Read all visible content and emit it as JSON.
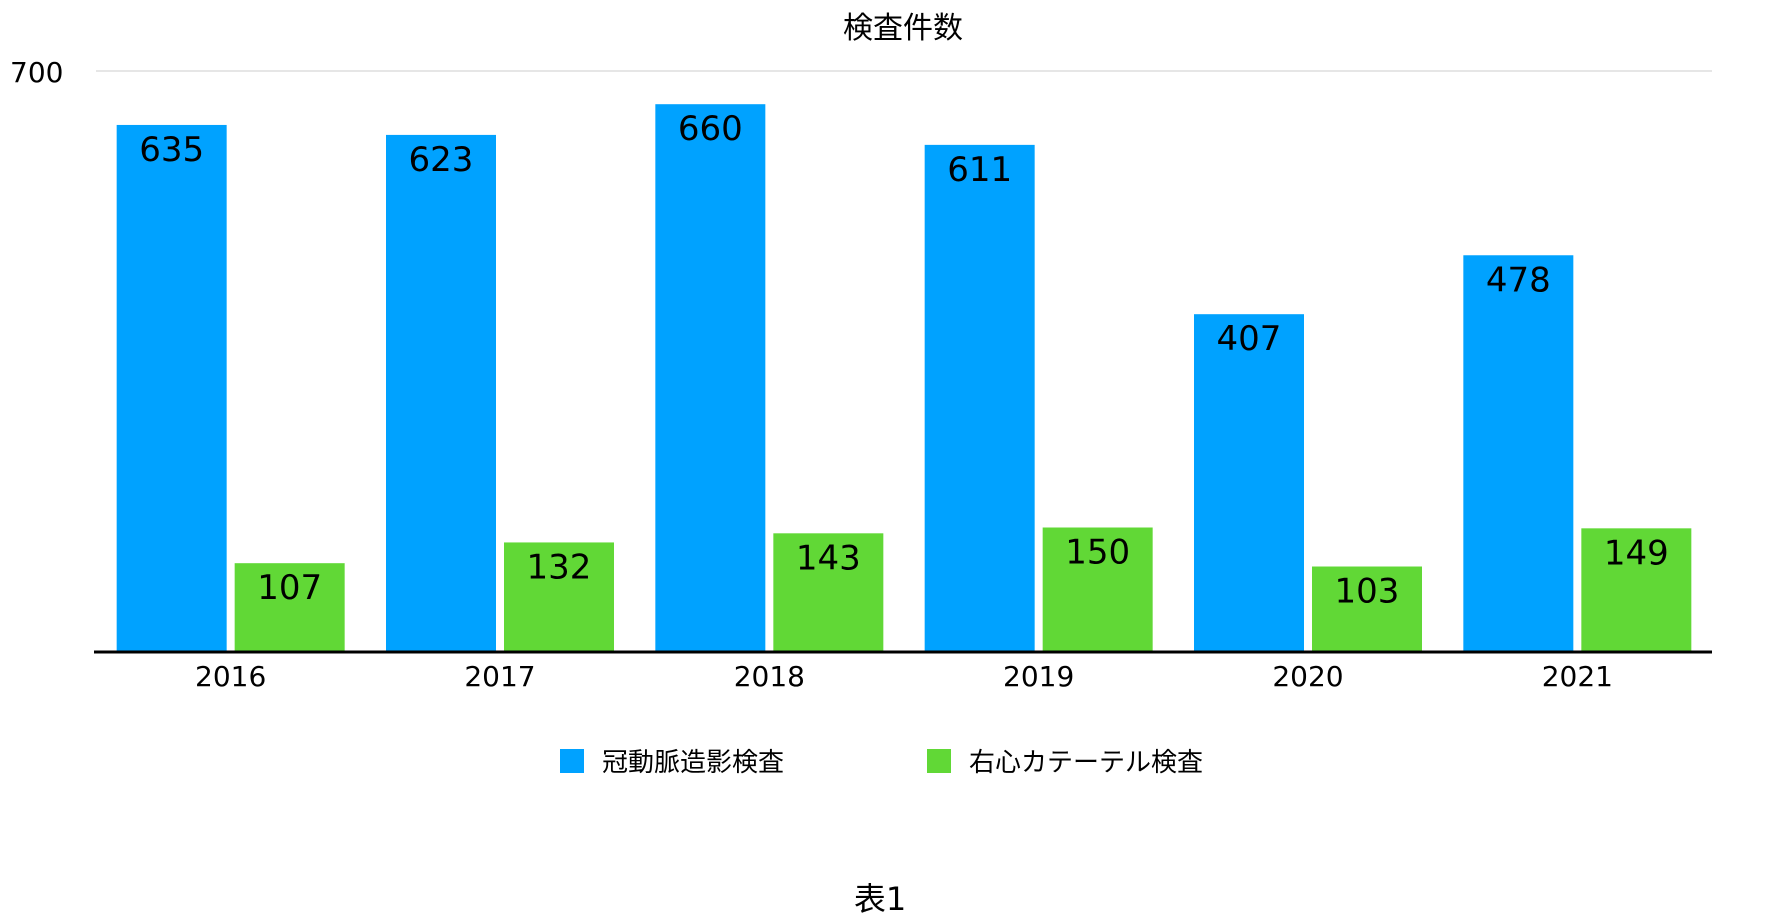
{
  "chart_data": {
    "type": "bar",
    "title": "検査件数",
    "categories": [
      "2016",
      "2017",
      "2018",
      "2019",
      "2020",
      "2021"
    ],
    "series": [
      {
        "name": "冠動脈造影検査",
        "color": "#00a2ff",
        "values": [
          635,
          623,
          660,
          611,
          407,
          478
        ]
      },
      {
        "name": "右心カテーテル検査",
        "color": "#61d836",
        "values": [
          107,
          132,
          143,
          150,
          103,
          149
        ]
      }
    ],
    "y_ticks": [
      "700"
    ],
    "ylim": [
      0,
      700
    ],
    "xlabel": "",
    "ylabel": "",
    "grid": true,
    "legend_position": "bottom"
  },
  "caption": "表1"
}
